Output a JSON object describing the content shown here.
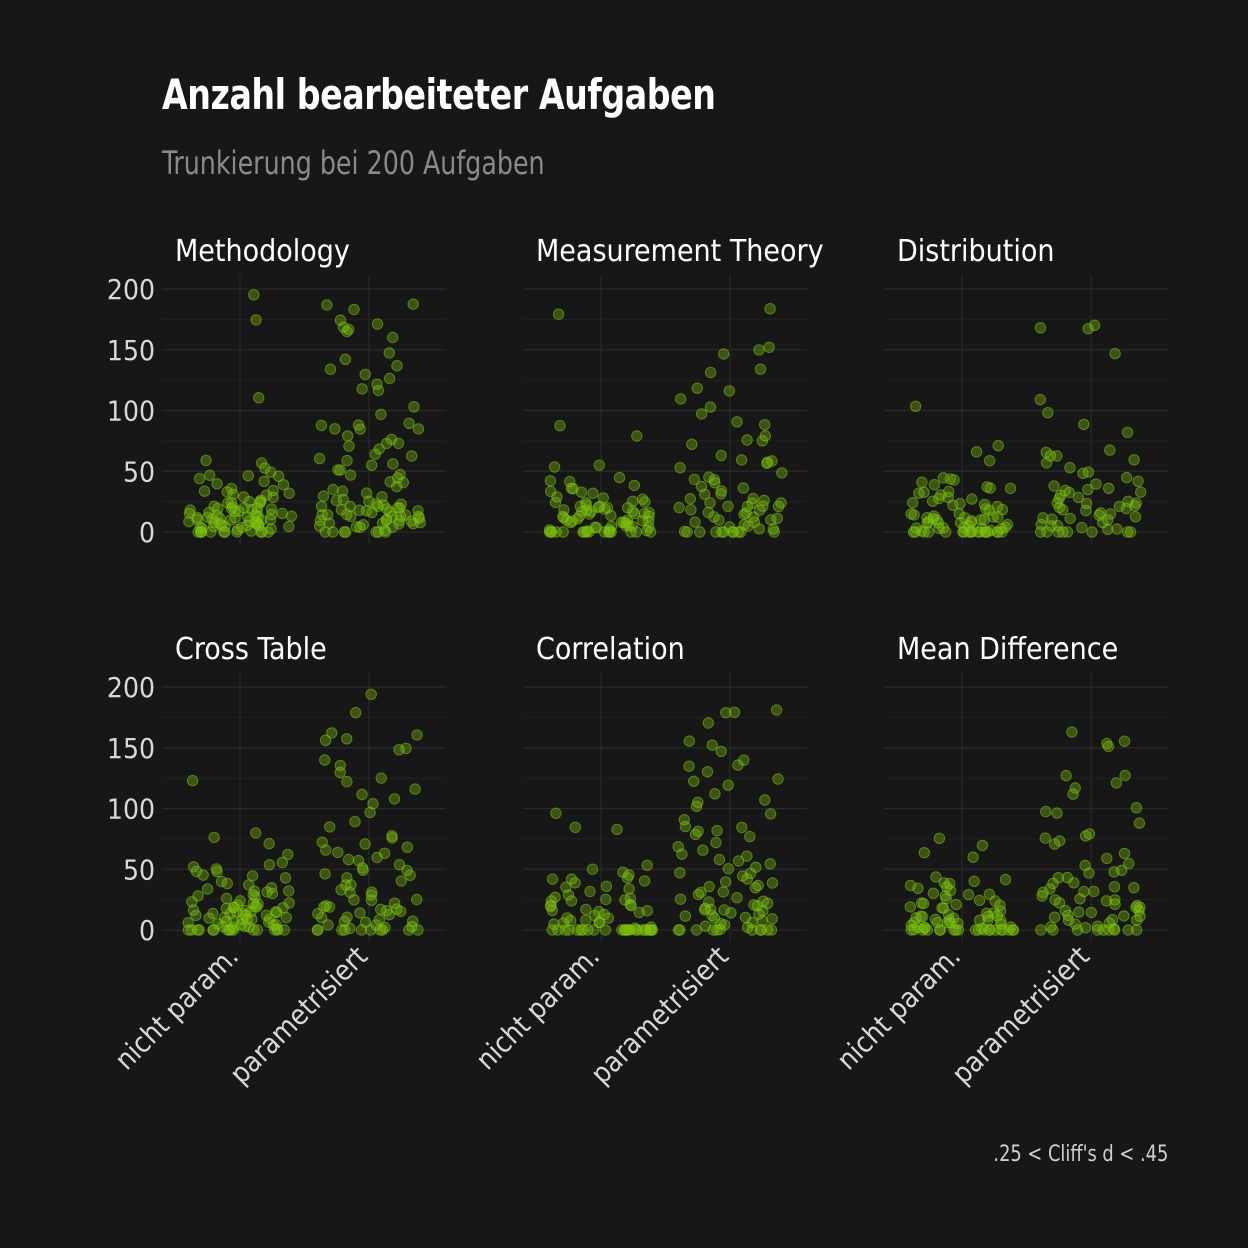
{
  "title": "Anzahl bearbeiteter Aufgaben",
  "subtitle": "Trunkierung bei 200 Aufgaben",
  "caption": ".25 < Cliff's d < .45",
  "colors": {
    "background": "#171717",
    "points": "#7fc40e",
    "text": "#ffffff",
    "grid": "#2a2a2a"
  },
  "chart_data": {
    "type": "scatter",
    "style": "jittered strip plot, small multiples (2 rows x 3 facets), semi-transparent green points",
    "categories": [
      "nicht param.",
      "parametrisiert"
    ],
    "ylim": [
      0,
      200
    ],
    "yticks": [
      0,
      50,
      100,
      150,
      200
    ],
    "grid": true,
    "facets": [
      {
        "name": "Methodology",
        "series": [
          {
            "name": "nicht param.",
            "values": [
              175,
              194,
              110,
              58,
              56,
              53,
              50,
              47,
              46,
              45,
              44,
              42,
              40,
              38,
              36,
              35,
              34,
              33,
              32,
              31,
              30,
              29,
              28,
              27,
              26,
              25,
              25,
              24,
              23,
              22,
              22,
              21,
              20,
              20,
              19,
              19,
              18,
              18,
              17,
              17,
              16,
              16,
              15,
              15,
              14,
              14,
              13,
              13,
              12,
              12,
              12,
              11,
              11,
              11,
              10,
              10,
              10,
              9,
              9,
              9,
              8,
              8,
              8,
              7,
              7,
              7,
              6,
              6,
              6,
              5,
              5,
              5,
              4,
              4,
              3,
              3,
              2,
              2,
              1,
              1,
              0,
              0,
              0,
              0,
              0,
              0,
              0,
              0,
              0,
              0
            ]
          },
          {
            "name": "parametrisiert",
            "values": [
              188,
              186,
              182,
              175,
              170,
              168,
              166,
              165,
              160,
              147,
              143,
              138,
              134,
              130,
              126,
              122,
              118,
              117,
              102,
              97,
              90,
              88,
              87,
              86,
              85,
              84,
              78,
              75,
              73,
              72,
              70,
              68,
              65,
              62,
              60,
              58,
              55,
              54,
              52,
              50,
              48,
              46,
              44,
              42,
              40,
              38,
              36,
              34,
              32,
              30,
              28,
              27,
              26,
              25,
              24,
              23,
              22,
              22,
              21,
              20,
              20,
              19,
              19,
              18,
              18,
              17,
              17,
              16,
              16,
              15,
              15,
              14,
              14,
              13,
              13,
              12,
              12,
              11,
              11,
              10,
              10,
              9,
              9,
              8,
              8,
              7,
              7,
              6,
              6,
              5,
              5,
              4,
              3,
              2,
              1,
              0,
              0,
              0,
              0,
              0,
              0
            ]
          }
        ]
      },
      {
        "name": "Measurement Theory",
        "series": [
          {
            "name": "nicht param.",
            "values": [
              180,
              88,
              80,
              54,
              53,
              45,
              43,
              41,
              38,
              36,
              35,
              34,
              33,
              32,
              30,
              28,
              27,
              26,
              25,
              24,
              23,
              22,
              22,
              21,
              20,
              20,
              19,
              19,
              18,
              18,
              17,
              17,
              16,
              16,
              15,
              15,
              14,
              14,
              13,
              13,
              12,
              12,
              11,
              11,
              10,
              10,
              9,
              9,
              8,
              8,
              7,
              7,
              6,
              6,
              5,
              5,
              4,
              4,
              3,
              3,
              2,
              2,
              1,
              1,
              0,
              0,
              0,
              0,
              0,
              0,
              0,
              0,
              0,
              0,
              0,
              0,
              0,
              0,
              0
            ]
          },
          {
            "name": "parametrisiert",
            "values": [
              184,
              153,
              150,
              147,
              133,
              131,
              118,
              116,
              110,
              102,
              98,
              90,
              88,
              80,
              76,
              75,
              72,
              62,
              60,
              58,
              58,
              56,
              52,
              48,
              46,
              44,
              42,
              40,
              38,
              36,
              34,
              32,
              30,
              28,
              27,
              26,
              25,
              24,
              23,
              22,
              21,
              20,
              20,
              19,
              18,
              17,
              16,
              15,
              14,
              13,
              12,
              11,
              10,
              9,
              8,
              7,
              6,
              5,
              4,
              3,
              2,
              1,
              0,
              0,
              0,
              0,
              0,
              0,
              0,
              0,
              0,
              0
            ]
          }
        ]
      },
      {
        "name": "Distribution",
        "series": [
          {
            "name": "nicht param.",
            "values": [
              103,
              72,
              65,
              58,
              45,
              44,
              42,
              40,
              38,
              37,
              36,
              35,
              34,
              33,
              32,
              30,
              28,
              27,
              26,
              25,
              24,
              23,
              22,
              21,
              20,
              19,
              18,
              17,
              16,
              15,
              14,
              14,
              13,
              13,
              12,
              12,
              11,
              11,
              10,
              10,
              9,
              9,
              8,
              8,
              7,
              7,
              6,
              6,
              5,
              5,
              4,
              4,
              3,
              3,
              2,
              2,
              1,
              1,
              0,
              0,
              0,
              0,
              0,
              0,
              0,
              0,
              0,
              0,
              0,
              0,
              0,
              0,
              0,
              0,
              0
            ]
          },
          {
            "name": "parametrisiert",
            "values": [
              171,
              169,
              168,
              148,
              110,
              98,
              88,
              82,
              68,
              65,
              63,
              62,
              60,
              58,
              52,
              50,
              48,
              45,
              42,
              40,
              38,
              36,
              35,
              34,
              33,
              32,
              30,
              28,
              27,
              26,
              25,
              24,
              23,
              22,
              21,
              20,
              19,
              18,
              17,
              16,
              15,
              14,
              13,
              12,
              11,
              10,
              9,
              8,
              7,
              6,
              5,
              4,
              3,
              2,
              1,
              0,
              0,
              0,
              0,
              0,
              0,
              0
            ]
          }
        ]
      },
      {
        "name": "Cross Table",
        "series": [
          {
            "name": "nicht param.",
            "values": [
              122,
              80,
              75,
              70,
              62,
              55,
              53,
              52,
              50,
              48,
              47,
              45,
              44,
              42,
              40,
              38,
              36,
              35,
              34,
              33,
              32,
              31,
              30,
              29,
              28,
              27,
              26,
              25,
              24,
              23,
              22,
              21,
              20,
              20,
              19,
              19,
              18,
              18,
              17,
              17,
              16,
              16,
              15,
              15,
              14,
              14,
              13,
              13,
              12,
              12,
              11,
              11,
              10,
              10,
              9,
              9,
              8,
              8,
              7,
              7,
              6,
              6,
              5,
              5,
              4,
              4,
              3,
              3,
              2,
              2,
              1,
              1,
              0,
              0,
              0,
              0,
              0,
              0,
              0,
              0,
              0,
              0,
              0,
              0,
              0,
              0
            ]
          },
          {
            "name": "parametrisiert",
            "values": [
              195,
              180,
              162,
              160,
              157,
              156,
              150,
              148,
              140,
              136,
              130,
              124,
              121,
              115,
              112,
              108,
              103,
              96,
              90,
              85,
              78,
              75,
              72,
              70,
              68,
              66,
              64,
              62,
              60,
              58,
              56,
              54,
              52,
              50,
              48,
              46,
              44,
              42,
              40,
              38,
              36,
              34,
              32,
              30,
              28,
              26,
              25,
              24,
              22,
              21,
              20,
              19,
              18,
              17,
              16,
              15,
              14,
              13,
              12,
              11,
              10,
              9,
              8,
              7,
              6,
              5,
              4,
              3,
              2,
              1,
              0,
              0,
              0,
              0,
              0,
              0,
              0,
              0,
              0,
              0
            ]
          }
        ]
      },
      {
        "name": "Correlation",
        "series": [
          {
            "name": "nicht param.",
            "values": [
              95,
              84,
              82,
              54,
              50,
              48,
              45,
              43,
              42,
              41,
              40,
              38,
              36,
              35,
              33,
              31,
              30,
              28,
              27,
              26,
              25,
              24,
              23,
              22,
              21,
              20,
              19,
              18,
              17,
              16,
              15,
              14,
              13,
              12,
              11,
              10,
              9,
              8,
              7,
              6,
              5,
              4,
              3,
              2,
              1,
              0,
              0,
              0,
              0,
              0,
              0,
              0,
              0,
              0,
              0,
              0,
              0,
              0,
              0,
              0,
              0,
              0,
              0,
              0,
              0,
              0,
              0,
              0,
              0
            ]
          },
          {
            "name": "parametrisiert",
            "values": [
              182,
              180,
              179,
              170,
              155,
              152,
              148,
              140,
              136,
              135,
              130,
              125,
              122,
              118,
              113,
              108,
              104,
              102,
              95,
              90,
              86,
              84,
              82,
              80,
              78,
              76,
              72,
              68,
              65,
              62,
              60,
              58,
              56,
              54,
              52,
              50,
              48,
              46,
              44,
              42,
              40,
              38,
              36,
              35,
              34,
              32,
              30,
              28,
              26,
              25,
              24,
              23,
              22,
              21,
              20,
              19,
              18,
              17,
              16,
              15,
              14,
              13,
              12,
              11,
              10,
              9,
              8,
              7,
              6,
              5,
              4,
              3,
              2,
              1,
              0,
              0,
              0,
              0,
              0,
              0,
              0,
              0,
              0,
              0
            ]
          }
        ]
      },
      {
        "name": "Mean Difference",
        "series": [
          {
            "name": "nicht param.",
            "values": [
              76,
              70,
              63,
              60,
              44,
              42,
              40,
              38,
              37,
              36,
              35,
              34,
              33,
              31,
              30,
              28,
              27,
              26,
              25,
              24,
              23,
              22,
              21,
              20,
              19,
              18,
              17,
              16,
              15,
              14,
              13,
              12,
              12,
              11,
              11,
              10,
              10,
              9,
              9,
              8,
              8,
              7,
              7,
              6,
              6,
              5,
              5,
              4,
              4,
              3,
              3,
              2,
              2,
              1,
              1,
              0,
              0,
              0,
              0,
              0,
              0,
              0,
              0,
              0,
              0,
              0,
              0,
              0,
              0,
              0,
              0,
              0,
              0,
              0
            ]
          },
          {
            "name": "parametrisiert",
            "values": [
              163,
              155,
              153,
              152,
              128,
              126,
              120,
              117,
              113,
              100,
              97,
              96,
              87,
              80,
              78,
              75,
              74,
              70,
              64,
              60,
              55,
              52,
              50,
              48,
              46,
              44,
              42,
              40,
              38,
              36,
              35,
              34,
              33,
              32,
              30,
              28,
              26,
              25,
              24,
              23,
              22,
              21,
              20,
              19,
              18,
              17,
              16,
              15,
              14,
              13,
              12,
              11,
              10,
              9,
              8,
              7,
              6,
              5,
              4,
              3,
              2,
              1,
              0,
              0,
              0,
              0,
              0,
              0,
              0,
              0,
              0
            ]
          }
        ]
      }
    ]
  }
}
